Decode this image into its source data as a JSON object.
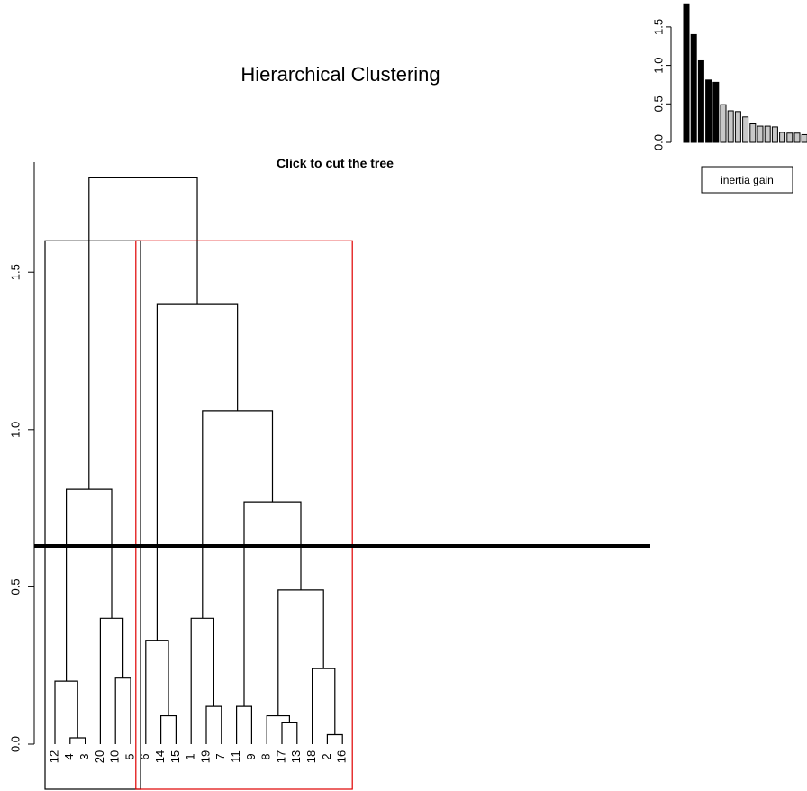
{
  "title": "Hierarchical Clustering",
  "colors": {
    "cluster_box_1": "#000000",
    "cluster_box_2": "#e00000",
    "bar_selected": "#000000",
    "bar_other": "#c8c8c8",
    "cut_line": "#000000"
  },
  "chart_data": [
    {
      "type": "dendrogram",
      "title": "Click to cut the tree",
      "ylim": [
        0,
        1.85
      ],
      "yticks": [
        0.0,
        0.5,
        1.0,
        1.5
      ],
      "ytick_labels": [
        "0.0",
        "0.5",
        "1.0",
        "1.5"
      ],
      "leaves": [
        "12",
        "4",
        "3",
        "20",
        "10",
        "5",
        "6",
        "14",
        "15",
        "1",
        "19",
        "7",
        "11",
        "9",
        "8",
        "17",
        "13",
        "18",
        "2",
        "16"
      ],
      "merges": [
        {
          "a": "L:4",
          "b": "L:3",
          "height": 0.02
        },
        {
          "a": "L:12",
          "b": "M:0",
          "height": 0.2
        },
        {
          "a": "L:10",
          "b": "L:5",
          "height": 0.21
        },
        {
          "a": "L:20",
          "b": "M:2",
          "height": 0.4
        },
        {
          "a": "M:1",
          "b": "M:3",
          "height": 0.81
        },
        {
          "a": "L:14",
          "b": "L:15",
          "height": 0.09
        },
        {
          "a": "L:6",
          "b": "M:5",
          "height": 0.33
        },
        {
          "a": "L:19",
          "b": "L:7",
          "height": 0.12
        },
        {
          "a": "L:1",
          "b": "M:7",
          "height": 0.4
        },
        {
          "a": "L:11",
          "b": "L:9",
          "height": 0.12
        },
        {
          "a": "L:17",
          "b": "L:13",
          "height": 0.07
        },
        {
          "a": "L:8",
          "b": "M:10",
          "height": 0.09
        },
        {
          "a": "L:2",
          "b": "L:16",
          "height": 0.03
        },
        {
          "a": "L:18",
          "b": "M:12",
          "height": 0.24
        },
        {
          "a": "M:11",
          "b": "M:13",
          "height": 0.49
        },
        {
          "a": "M:9",
          "b": "M:14",
          "height": 0.77
        },
        {
          "a": "M:8",
          "b": "M:15",
          "height": 1.06
        },
        {
          "a": "M:6",
          "b": "M:16",
          "height": 1.4
        },
        {
          "a": "M:4",
          "b": "M:17",
          "height": 1.8
        }
      ],
      "cut_height": 0.63,
      "clusters": [
        {
          "first_leaf": 0,
          "last_leaf": 5,
          "top": 1.6,
          "color": "#000000"
        },
        {
          "first_leaf": 6,
          "last_leaf": 19,
          "top": 1.6,
          "color": "#e00000"
        }
      ]
    },
    {
      "type": "bar",
      "legend": "inertia gain",
      "values": [
        1.8,
        1.4,
        1.06,
        0.81,
        0.78,
        0.49,
        0.41,
        0.4,
        0.33,
        0.24,
        0.21,
        0.21,
        0.2,
        0.13,
        0.12,
        0.12,
        0.1,
        0.09,
        0.07
      ],
      "selected_count": 5,
      "ylim": [
        0,
        1.85
      ],
      "yticks": [
        0.0,
        0.5,
        1.0,
        1.5
      ],
      "ytick_labels": [
        "0.0",
        "0.5",
        "1.0",
        "1.5"
      ]
    }
  ]
}
